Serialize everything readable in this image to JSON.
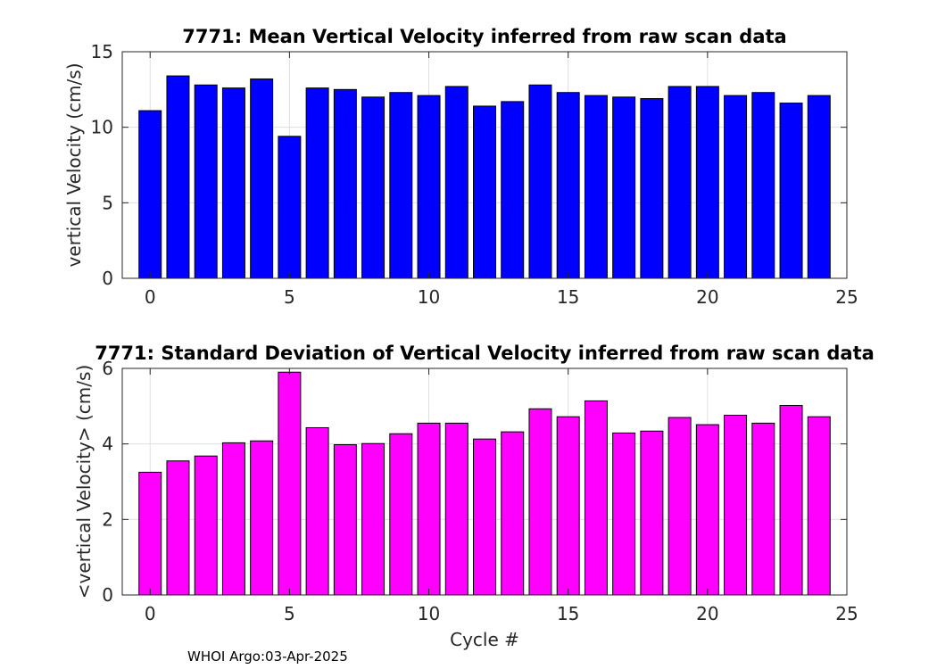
{
  "footer": "WHOI Argo:03-Apr-2025",
  "colors": {
    "axis": "#262626",
    "grid": "#dfdfdf",
    "edge": "#000000"
  },
  "chart_data": [
    {
      "type": "bar",
      "title": "7771: Mean Vertical Velocity inferred from raw scan data",
      "xlabel": "",
      "ylabel": "vertical Velocity (cm/s)",
      "color": "#0000ff",
      "xlim": [
        -1,
        25
      ],
      "ylim": [
        0,
        15
      ],
      "xticks": [
        0,
        5,
        10,
        15,
        20,
        25
      ],
      "yticks": [
        0,
        5,
        10,
        15
      ],
      "grid": true,
      "x": [
        0,
        1,
        2,
        3,
        4,
        5,
        6,
        7,
        8,
        9,
        10,
        11,
        12,
        13,
        14,
        15,
        16,
        17,
        18,
        19,
        20,
        21,
        22,
        23,
        24
      ],
      "values": [
        11.1,
        13.4,
        12.8,
        12.6,
        13.2,
        9.4,
        12.6,
        12.5,
        12.0,
        12.3,
        12.1,
        12.7,
        11.4,
        11.7,
        12.8,
        12.3,
        12.1,
        12.0,
        11.9,
        12.7,
        12.7,
        12.1,
        12.3,
        11.6,
        12.1
      ]
    },
    {
      "type": "bar",
      "title": "7771: Standard Deviation of Vertical Velocity inferred from raw scan data",
      "xlabel": "Cycle #",
      "ylabel": "<vertical Velocity> (cm/s)",
      "color": "#ff00ff",
      "xlim": [
        -1,
        25
      ],
      "ylim": [
        0,
        6
      ],
      "xticks": [
        0,
        5,
        10,
        15,
        20,
        25
      ],
      "yticks": [
        0,
        2,
        4,
        6
      ],
      "grid": true,
      "x": [
        0,
        1,
        2,
        3,
        4,
        5,
        6,
        7,
        8,
        9,
        10,
        11,
        12,
        13,
        14,
        15,
        16,
        17,
        18,
        19,
        20,
        21,
        22,
        23,
        24
      ],
      "values": [
        3.25,
        3.55,
        3.68,
        4.03,
        4.08,
        5.9,
        4.43,
        3.98,
        4.01,
        4.27,
        4.55,
        4.55,
        4.13,
        4.32,
        4.93,
        4.72,
        5.14,
        4.29,
        4.34,
        4.7,
        4.51,
        4.76,
        4.55,
        5.02,
        4.72
      ]
    }
  ]
}
